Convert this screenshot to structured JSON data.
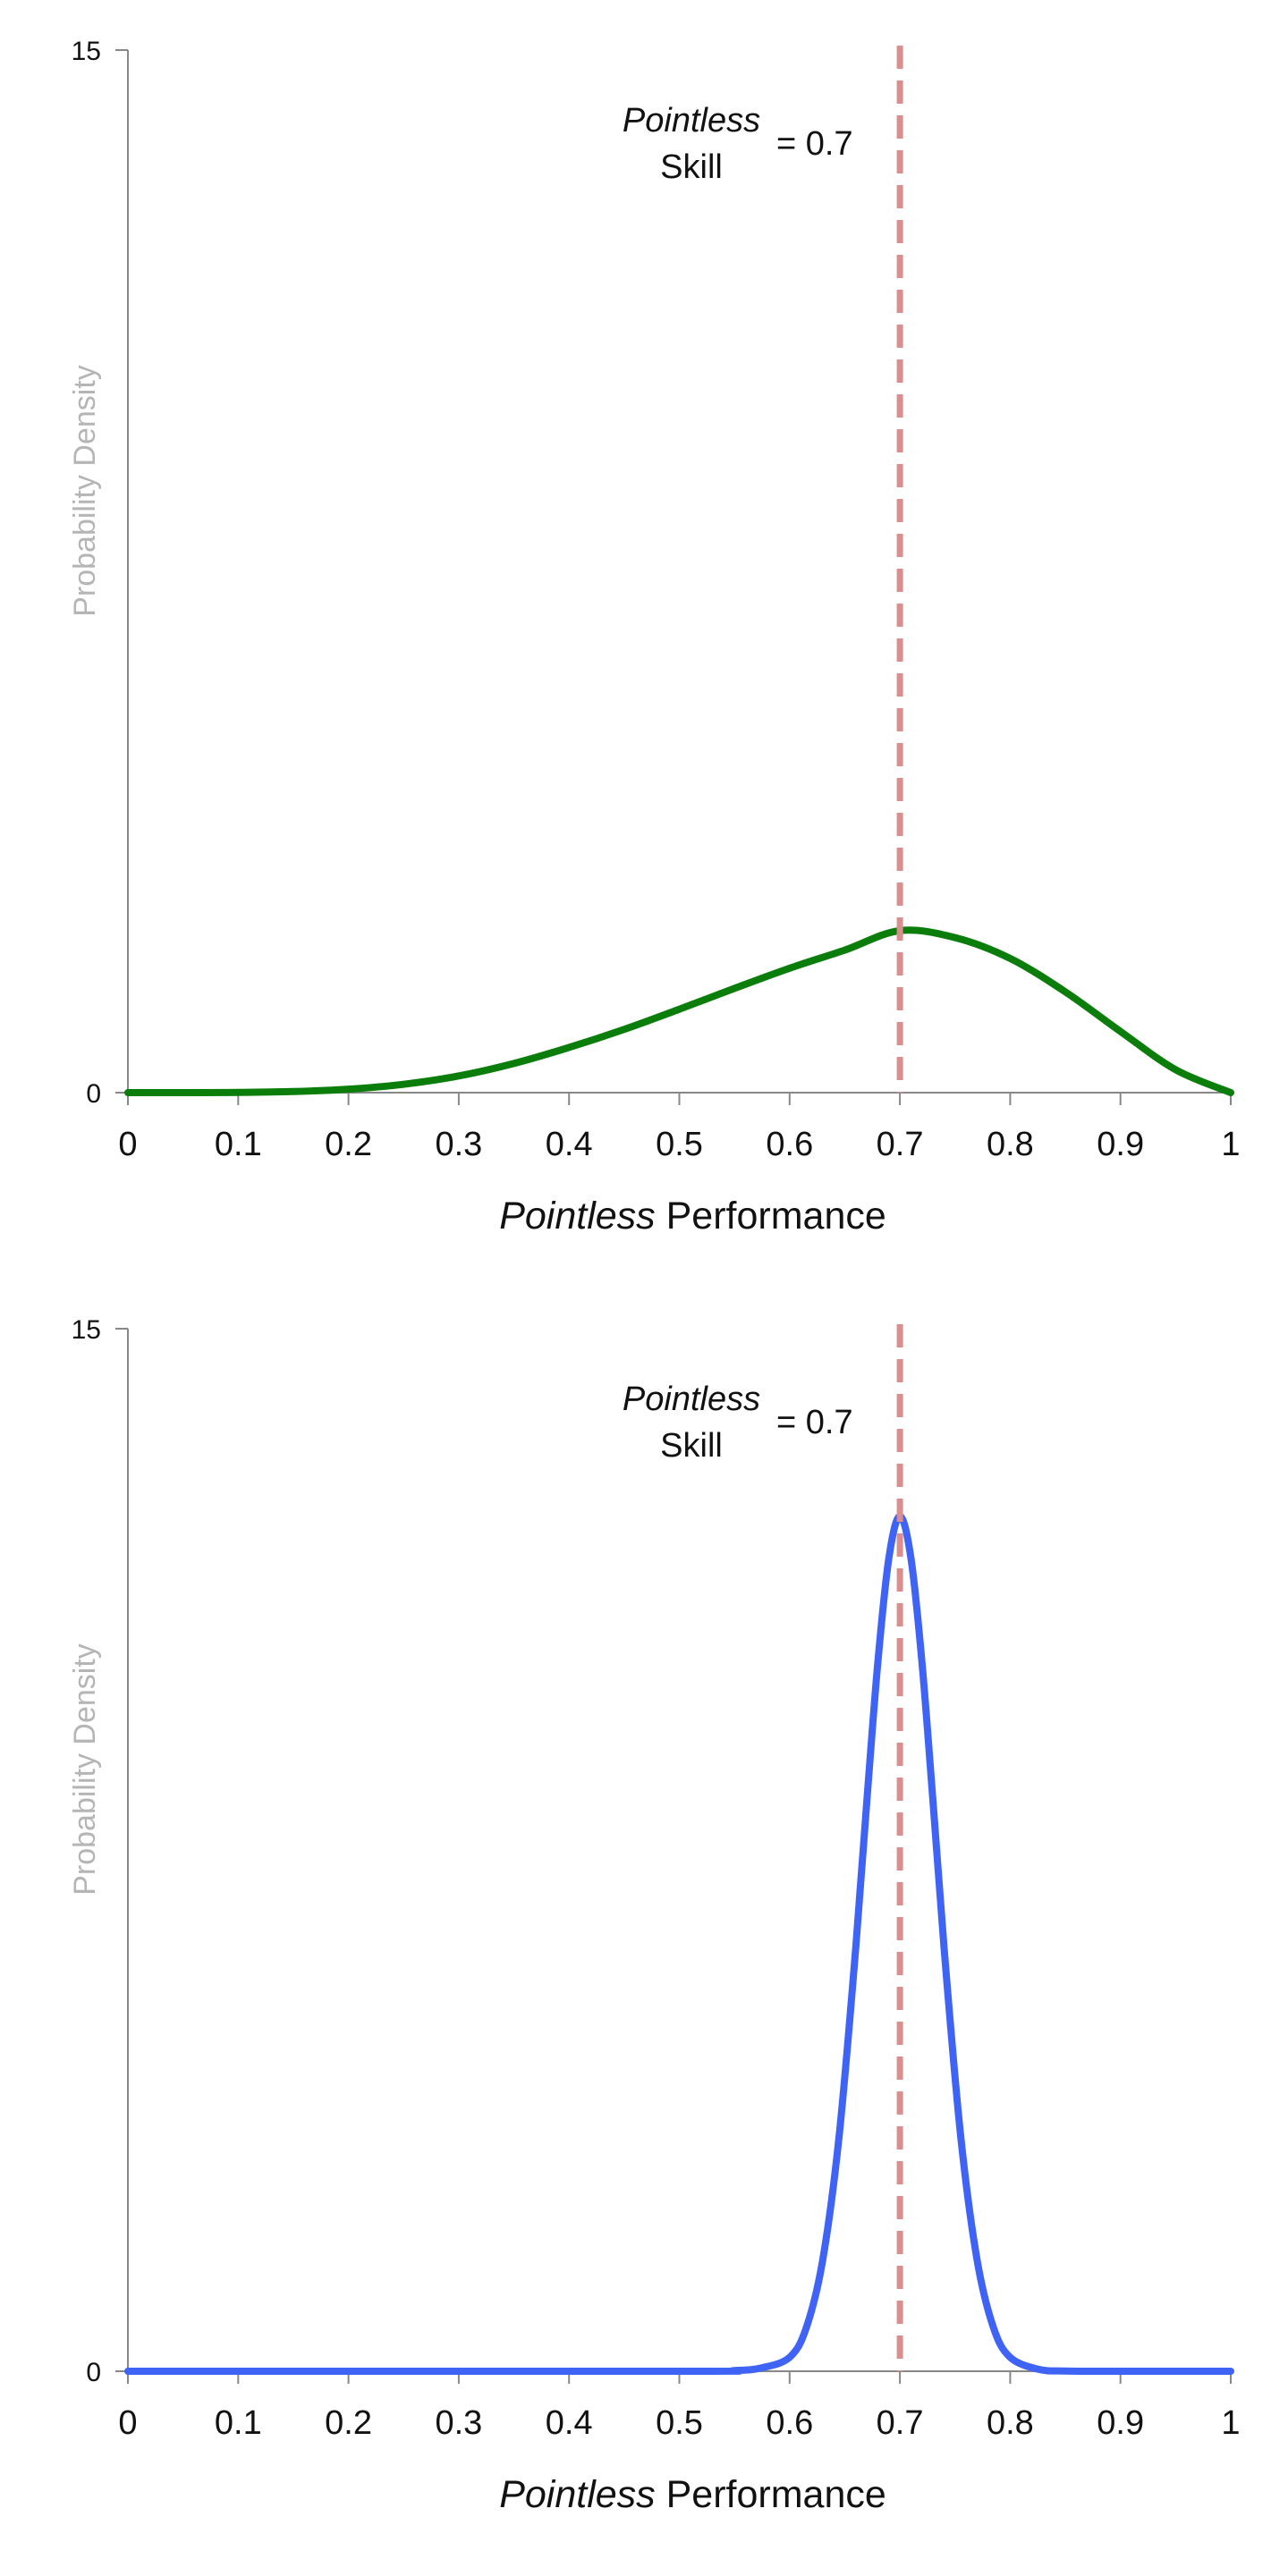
{
  "colors": {
    "green_curve": "#0a7d0a",
    "blue_curve": "#3f63f5",
    "reference_line": "#dc8e8e",
    "axis": "#888888",
    "axis_label": "#b5b5b5",
    "text": "#111111"
  },
  "chart_data": [
    {
      "type": "line",
      "title": "",
      "xlabel_italic": "Pointless",
      "xlabel_rest": "Performance",
      "ylabel": "Probability Density",
      "xlim": [
        0,
        1
      ],
      "ylim": [
        0,
        15
      ],
      "x_ticks": [
        "0",
        "0.1",
        "0.2",
        "0.3",
        "0.4",
        "0.5",
        "0.6",
        "0.7",
        "0.8",
        "0.9",
        "1"
      ],
      "y_ticks": [
        "0",
        "15"
      ],
      "grid": false,
      "reference_line": {
        "x": 0.7,
        "label_italic": "Pointless",
        "label_line2": "Skill",
        "label_value": "= 0.7"
      },
      "series": [
        {
          "color": "#0a7d0a",
          "x": [
            0,
            0.05,
            0.1,
            0.15,
            0.2,
            0.25,
            0.3,
            0.35,
            0.4,
            0.45,
            0.5,
            0.55,
            0.6,
            0.65,
            0.7,
            0.75,
            0.8,
            0.85,
            0.9,
            0.95,
            1
          ],
          "values": [
            0,
            0.0002,
            0.003,
            0.016,
            0.05,
            0.12,
            0.24,
            0.42,
            0.65,
            0.91,
            1.2,
            1.5,
            1.79,
            2.05,
            2.33,
            2.23,
            1.93,
            1.45,
            0.88,
            0.33,
            0
          ]
        }
      ]
    },
    {
      "type": "line",
      "title": "",
      "xlabel_italic": "Pointless",
      "xlabel_rest": "Performance",
      "ylabel": "Probability Density",
      "xlim": [
        0,
        1
      ],
      "ylim": [
        0,
        15
      ],
      "x_ticks": [
        "0",
        "0.1",
        "0.2",
        "0.3",
        "0.4",
        "0.5",
        "0.6",
        "0.7",
        "0.8",
        "0.9",
        "1"
      ],
      "y_ticks": [
        "0",
        "15"
      ],
      "grid": false,
      "reference_line": {
        "x": 0.7,
        "label_italic": "Pointless",
        "label_line2": "Skill",
        "label_value": "= 0.7"
      },
      "series": [
        {
          "color": "#3f63f5",
          "x": [
            0,
            0.5,
            0.55,
            0.575,
            0.6,
            0.615,
            0.63,
            0.645,
            0.66,
            0.67,
            0.68,
            0.69,
            0.7,
            0.71,
            0.72,
            0.73,
            0.74,
            0.755,
            0.77,
            0.785,
            0.8,
            0.825,
            0.85,
            0.9,
            1
          ],
          "values": [
            0,
            0,
            0.01,
            0.05,
            0.2,
            0.62,
            1.6,
            3.4,
            6.1,
            8.2,
            10.2,
            11.7,
            12.3,
            11.7,
            10.2,
            8.2,
            6.1,
            3.4,
            1.6,
            0.62,
            0.2,
            0.03,
            0.003,
            0,
            0
          ]
        }
      ]
    }
  ]
}
